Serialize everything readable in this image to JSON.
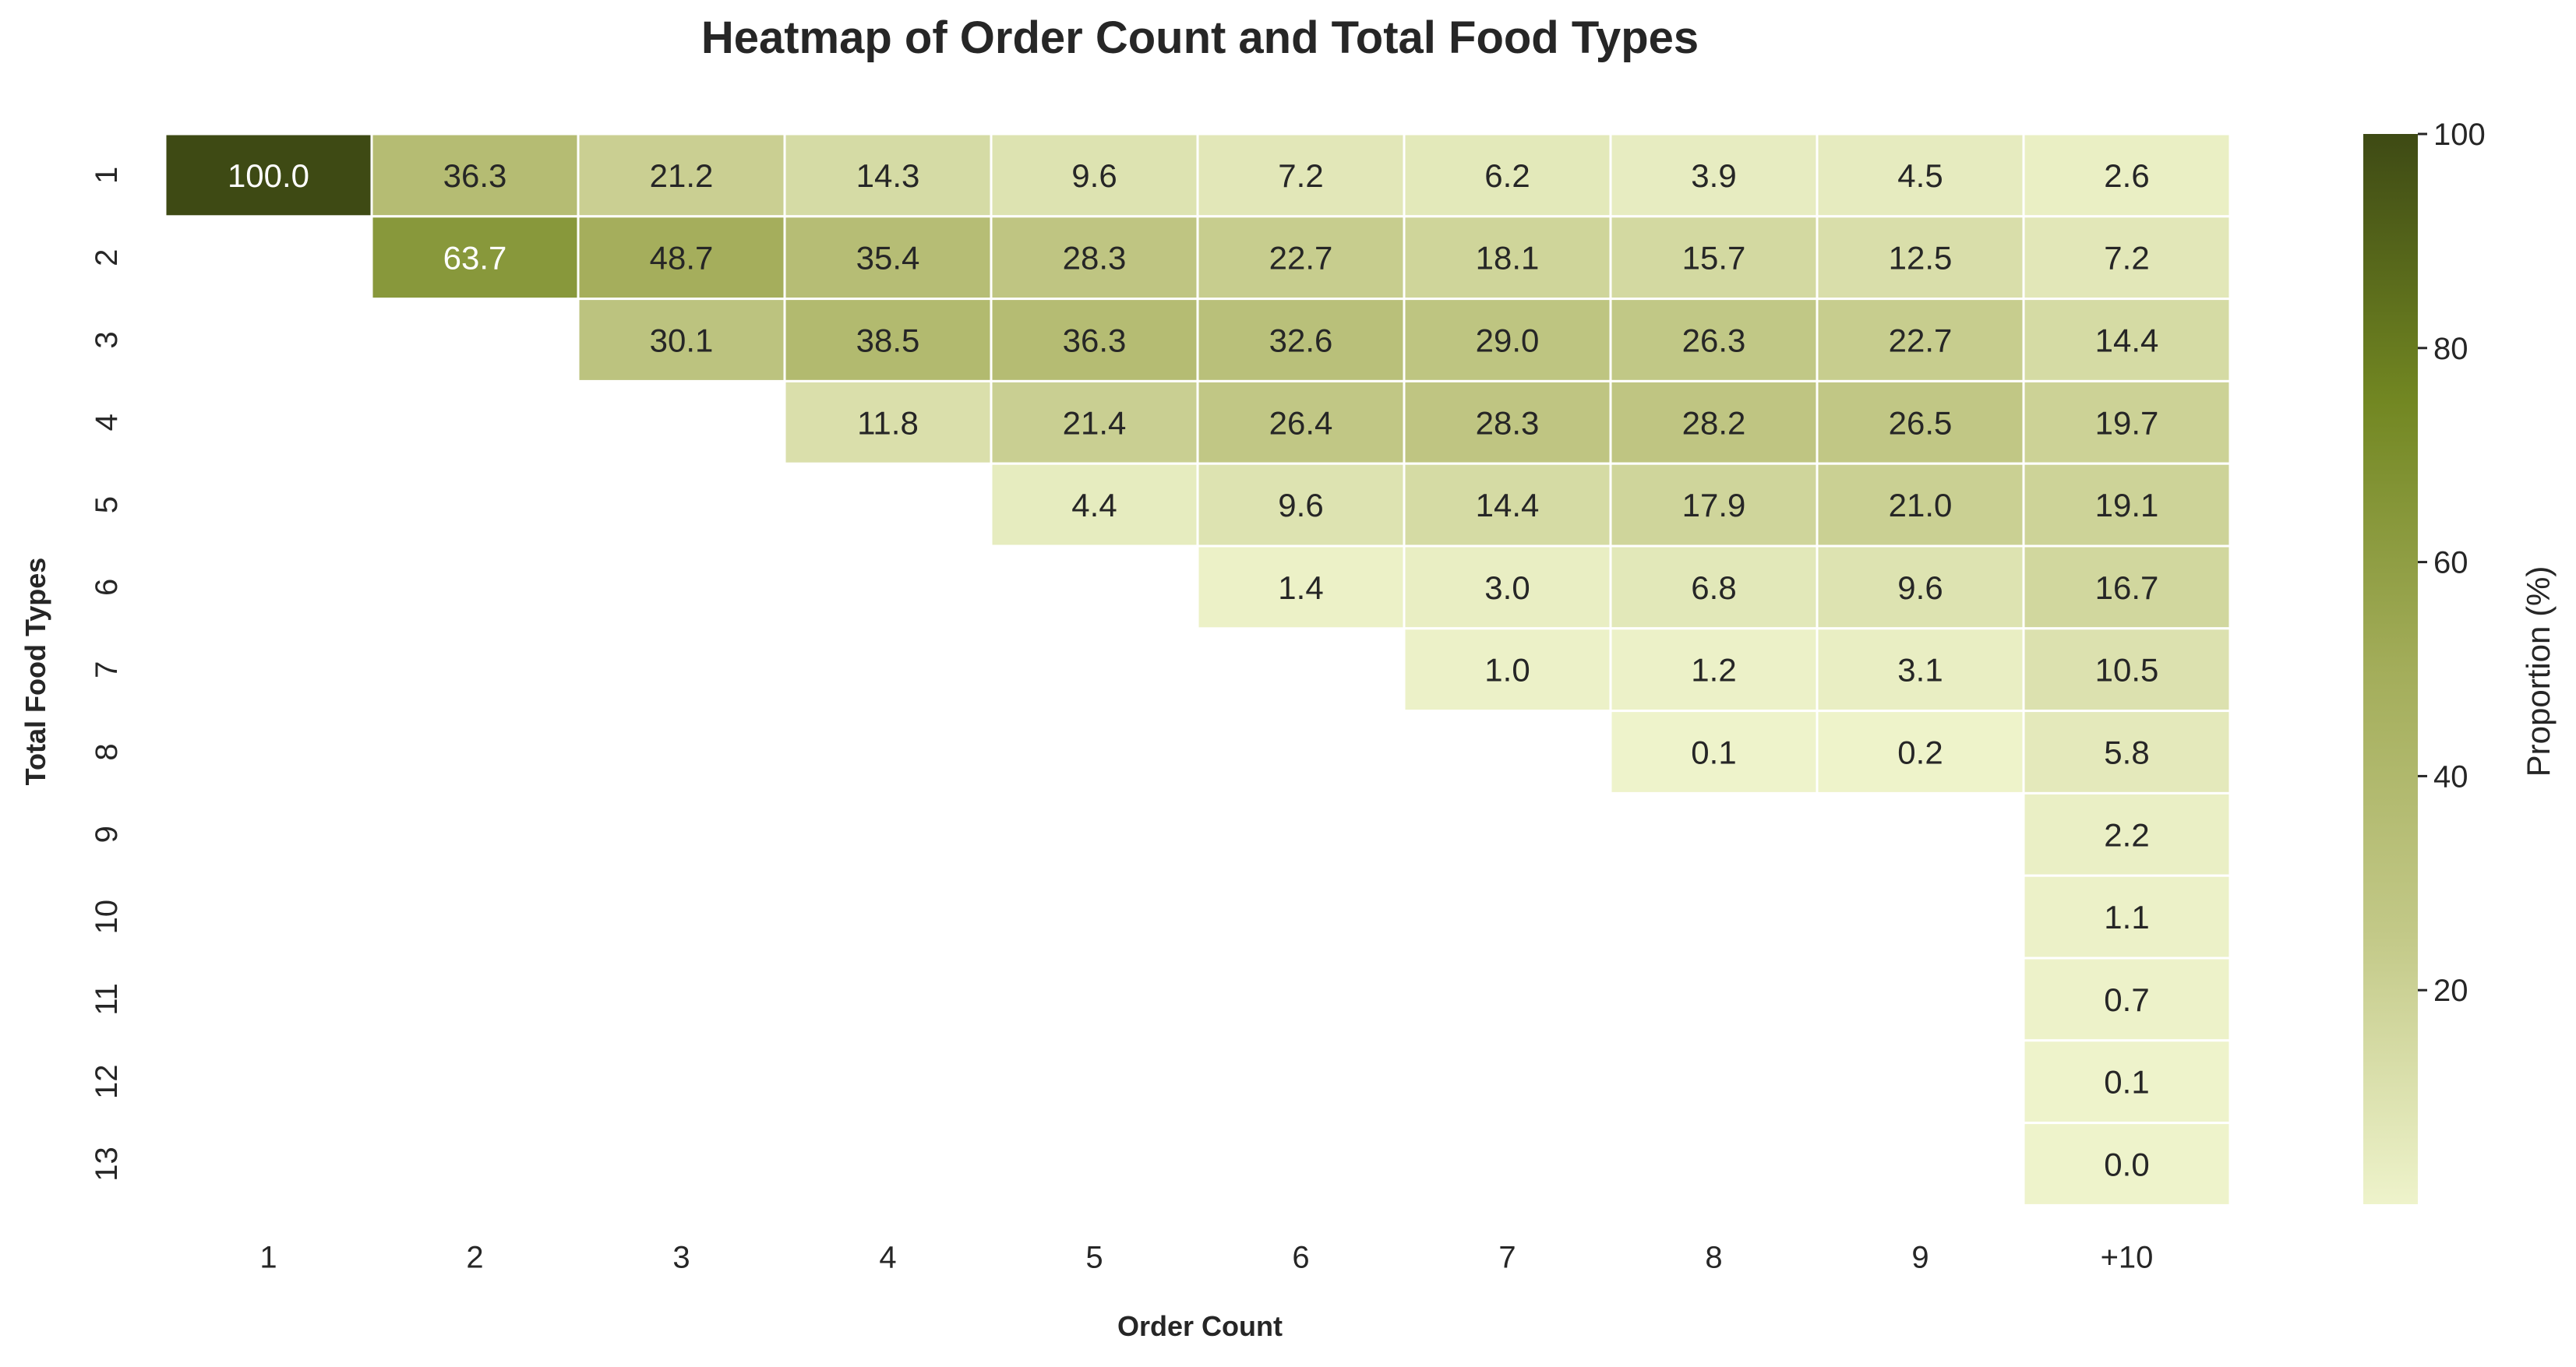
{
  "chart_data": {
    "type": "heatmap",
    "title": "Heatmap of Order Count and Total Food Types",
    "xlabel": "Order Count",
    "ylabel": "Total Food Types",
    "x_categories": [
      "1",
      "2",
      "3",
      "4",
      "5",
      "6",
      "7",
      "8",
      "9",
      "+10"
    ],
    "y_categories": [
      "1",
      "2",
      "3",
      "4",
      "5",
      "6",
      "7",
      "8",
      "9",
      "10",
      "11",
      "12",
      "13"
    ],
    "values": [
      [
        100.0,
        36.3,
        21.2,
        14.3,
        9.6,
        7.2,
        6.2,
        3.9,
        4.5,
        2.6
      ],
      [
        null,
        63.7,
        48.7,
        35.4,
        28.3,
        22.7,
        18.1,
        15.7,
        12.5,
        7.2
      ],
      [
        null,
        null,
        30.1,
        38.5,
        36.3,
        32.6,
        29.0,
        26.3,
        22.7,
        14.4
      ],
      [
        null,
        null,
        null,
        11.8,
        21.4,
        26.4,
        28.3,
        28.2,
        26.5,
        19.7
      ],
      [
        null,
        null,
        null,
        null,
        4.4,
        9.6,
        14.4,
        17.9,
        21.0,
        19.1
      ],
      [
        null,
        null,
        null,
        null,
        null,
        1.4,
        3.0,
        6.8,
        9.6,
        16.7
      ],
      [
        null,
        null,
        null,
        null,
        null,
        null,
        1.0,
        1.2,
        3.1,
        10.5
      ],
      [
        null,
        null,
        null,
        null,
        null,
        null,
        null,
        0.1,
        0.2,
        5.8
      ],
      [
        null,
        null,
        null,
        null,
        null,
        null,
        null,
        null,
        null,
        2.2
      ],
      [
        null,
        null,
        null,
        null,
        null,
        null,
        null,
        null,
        null,
        1.1
      ],
      [
        null,
        null,
        null,
        null,
        null,
        null,
        null,
        null,
        null,
        0.7
      ],
      [
        null,
        null,
        null,
        null,
        null,
        null,
        null,
        null,
        null,
        0.1
      ],
      [
        null,
        null,
        null,
        null,
        null,
        null,
        null,
        null,
        null,
        0.0
      ]
    ],
    "colorbar": {
      "label": "Proportion (%)",
      "ticks": [
        20,
        40,
        60,
        80,
        100
      ],
      "range": [
        0,
        100
      ],
      "colors": [
        "#eef3cb",
        "#c3c988",
        "#a3ad5a",
        "#728722",
        "#3e4a14"
      ]
    },
    "grid": false
  }
}
